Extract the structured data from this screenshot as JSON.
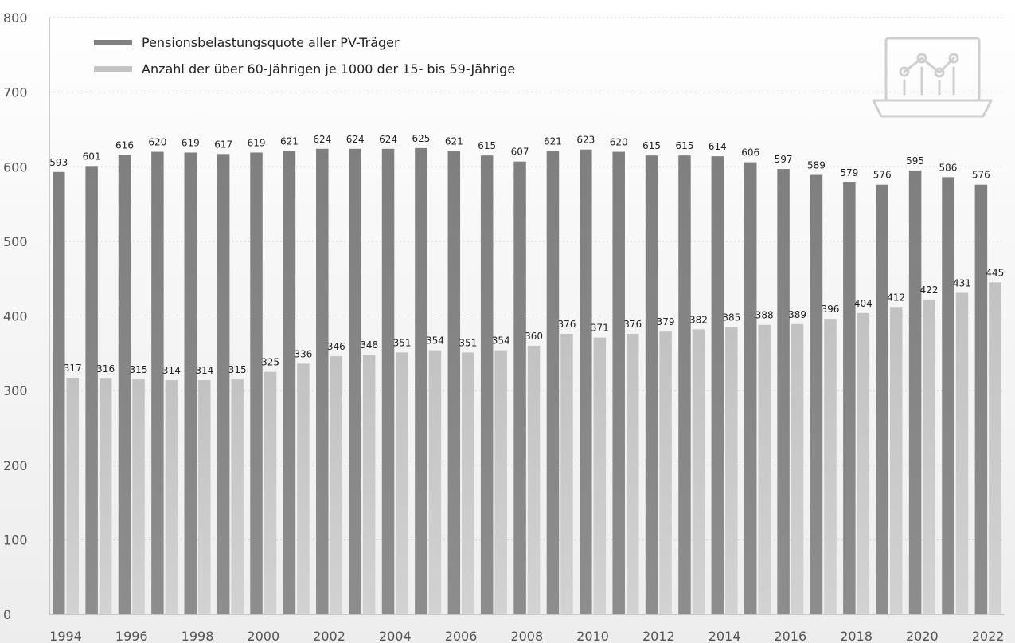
{
  "chart_data": {
    "type": "bar",
    "categories": [
      "1994",
      "1995",
      "1996",
      "1997",
      "1998",
      "1999",
      "2000",
      "2001",
      "2002",
      "2003",
      "2004",
      "2005",
      "2006",
      "2007",
      "2008",
      "2009",
      "2010",
      "2011",
      "2012",
      "2013",
      "2014",
      "2015",
      "2016",
      "2017",
      "2018",
      "2019",
      "2020",
      "2021",
      "2022"
    ],
    "x_tick_labels": [
      "1994",
      "1996",
      "1998",
      "2000",
      "2002",
      "2004",
      "2006",
      "2008",
      "2010",
      "2012",
      "2014",
      "2016",
      "2018",
      "2020",
      "2022"
    ],
    "series": [
      {
        "name": "Pensionsbelastungsquote aller PV-Träger",
        "color": "#888888",
        "values": [
          593,
          601,
          616,
          620,
          619,
          617,
          619,
          621,
          624,
          624,
          624,
          625,
          621,
          615,
          607,
          621,
          623,
          620,
          615,
          615,
          614,
          606,
          597,
          589,
          579,
          576,
          595,
          586,
          576
        ]
      },
      {
        "name": "Anzahl der über 60-Jährigen je 1000 der 15- bis 59-Jährige",
        "color": "#c4c4c4",
        "values": [
          317,
          316,
          315,
          314,
          314,
          315,
          325,
          336,
          346,
          348,
          351,
          354,
          351,
          354,
          360,
          376,
          371,
          376,
          379,
          382,
          385,
          388,
          389,
          396,
          404,
          412,
          422,
          431,
          445
        ]
      }
    ],
    "ylim": [
      0,
      800
    ],
    "y_ticks": [
      0,
      100,
      200,
      300,
      400,
      500,
      600,
      700,
      800
    ],
    "grid": "horizontal dotted",
    "legend_position": "top-left",
    "data_labels": true
  },
  "decor": {
    "icon": "laptop-chart-icon"
  }
}
